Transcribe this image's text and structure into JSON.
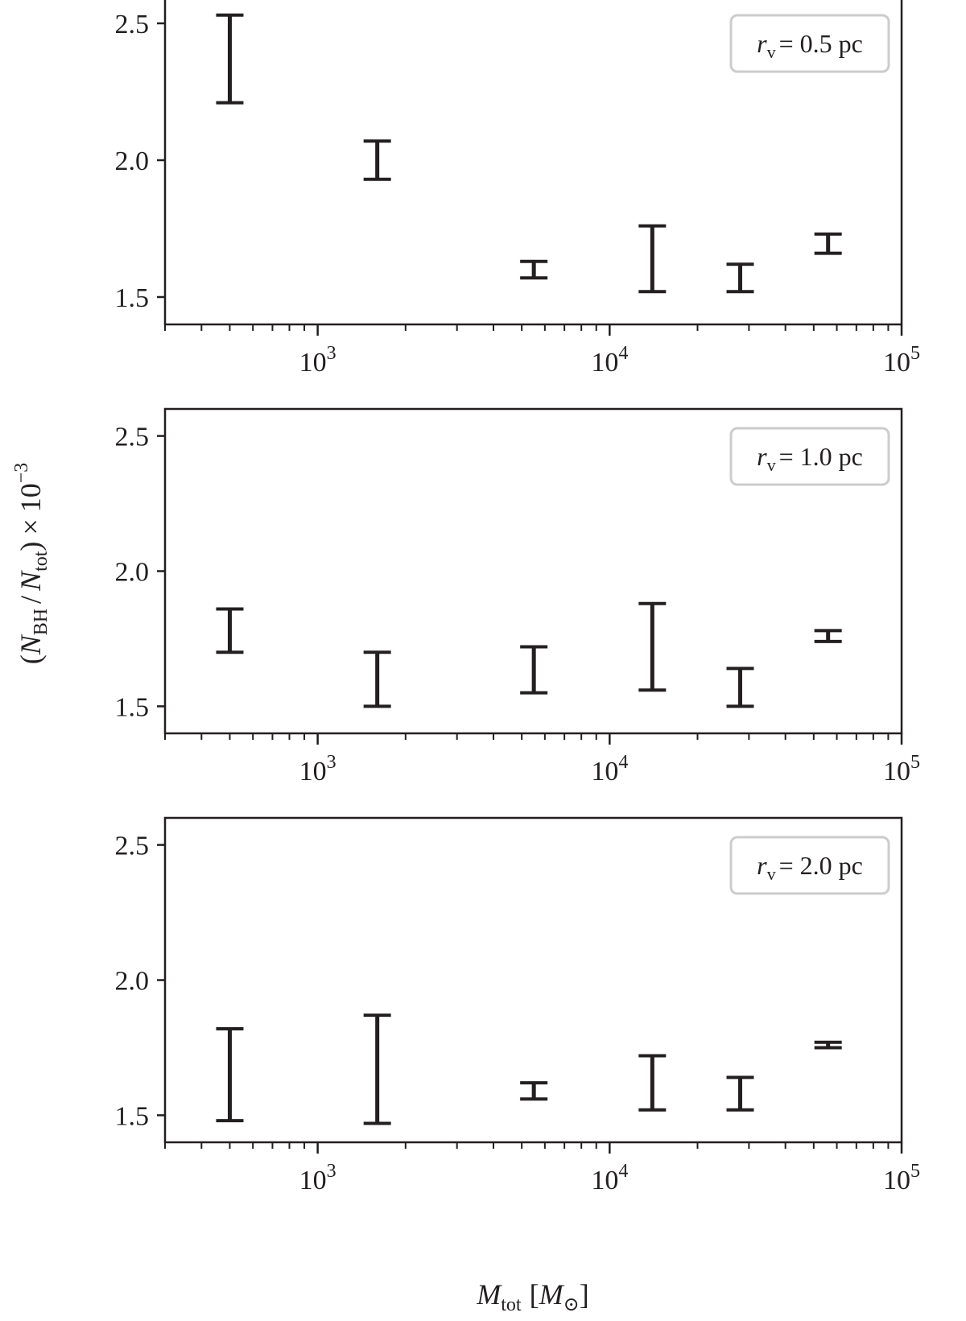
{
  "figure": {
    "ylabel": {
      "open": "(",
      "n1": "N",
      "sub1": "BH",
      "slash": "/",
      "n2": "N",
      "sub2": "tot",
      "close": ")",
      "times": "×",
      "base": "10",
      "exp": "−3"
    },
    "xlabel": {
      "m": "M",
      "sub": "tot",
      "lb": "[",
      "msun": "M",
      "sun": "⊙",
      "rb": "]"
    },
    "x_tick_labels": [
      {
        "base": "10",
        "exp": "3"
      },
      {
        "base": "10",
        "exp": "4"
      },
      {
        "base": "10",
        "exp": "5"
      }
    ],
    "y_tick_labels": [
      "1.5",
      "2.0",
      "2.5"
    ],
    "colors": {
      "errorbar": "#231f20",
      "frame": "#231f20",
      "legend_border": "#cccccc"
    }
  },
  "chart_data": [
    {
      "type": "errorbar",
      "legend": {
        "r": "r",
        "sub": "v",
        "text": "= 0.5 pc",
        "placement": "upper right"
      },
      "xscale": "log",
      "xlim": [
        300,
        100000
      ],
      "ylim": [
        1.4,
        2.6
      ],
      "x": [
        500,
        1600,
        5500,
        14000,
        28000,
        56000
      ],
      "ylow": [
        2.21,
        1.93,
        1.57,
        1.52,
        1.52,
        1.66
      ],
      "yhigh": [
        2.53,
        2.07,
        1.63,
        1.76,
        1.62,
        1.73
      ]
    },
    {
      "type": "errorbar",
      "legend": {
        "r": "r",
        "sub": "v",
        "text": "= 1.0 pc",
        "placement": "upper right"
      },
      "xscale": "log",
      "xlim": [
        300,
        100000
      ],
      "ylim": [
        1.4,
        2.6
      ],
      "x": [
        500,
        1600,
        5500,
        14000,
        28000,
        56000
      ],
      "ylow": [
        1.7,
        1.5,
        1.55,
        1.56,
        1.5,
        1.74
      ],
      "yhigh": [
        1.86,
        1.7,
        1.72,
        1.88,
        1.64,
        1.78
      ]
    },
    {
      "type": "errorbar",
      "legend": {
        "r": "r",
        "sub": "v",
        "text": "= 2.0 pc",
        "placement": "upper right"
      },
      "xscale": "log",
      "xlim": [
        300,
        100000
      ],
      "ylim": [
        1.4,
        2.6
      ],
      "x": [
        500,
        1600,
        5500,
        14000,
        28000,
        56000
      ],
      "ylow": [
        1.48,
        1.47,
        1.56,
        1.52,
        1.52,
        1.75
      ],
      "yhigh": [
        1.82,
        1.87,
        1.62,
        1.72,
        1.64,
        1.77
      ]
    }
  ]
}
